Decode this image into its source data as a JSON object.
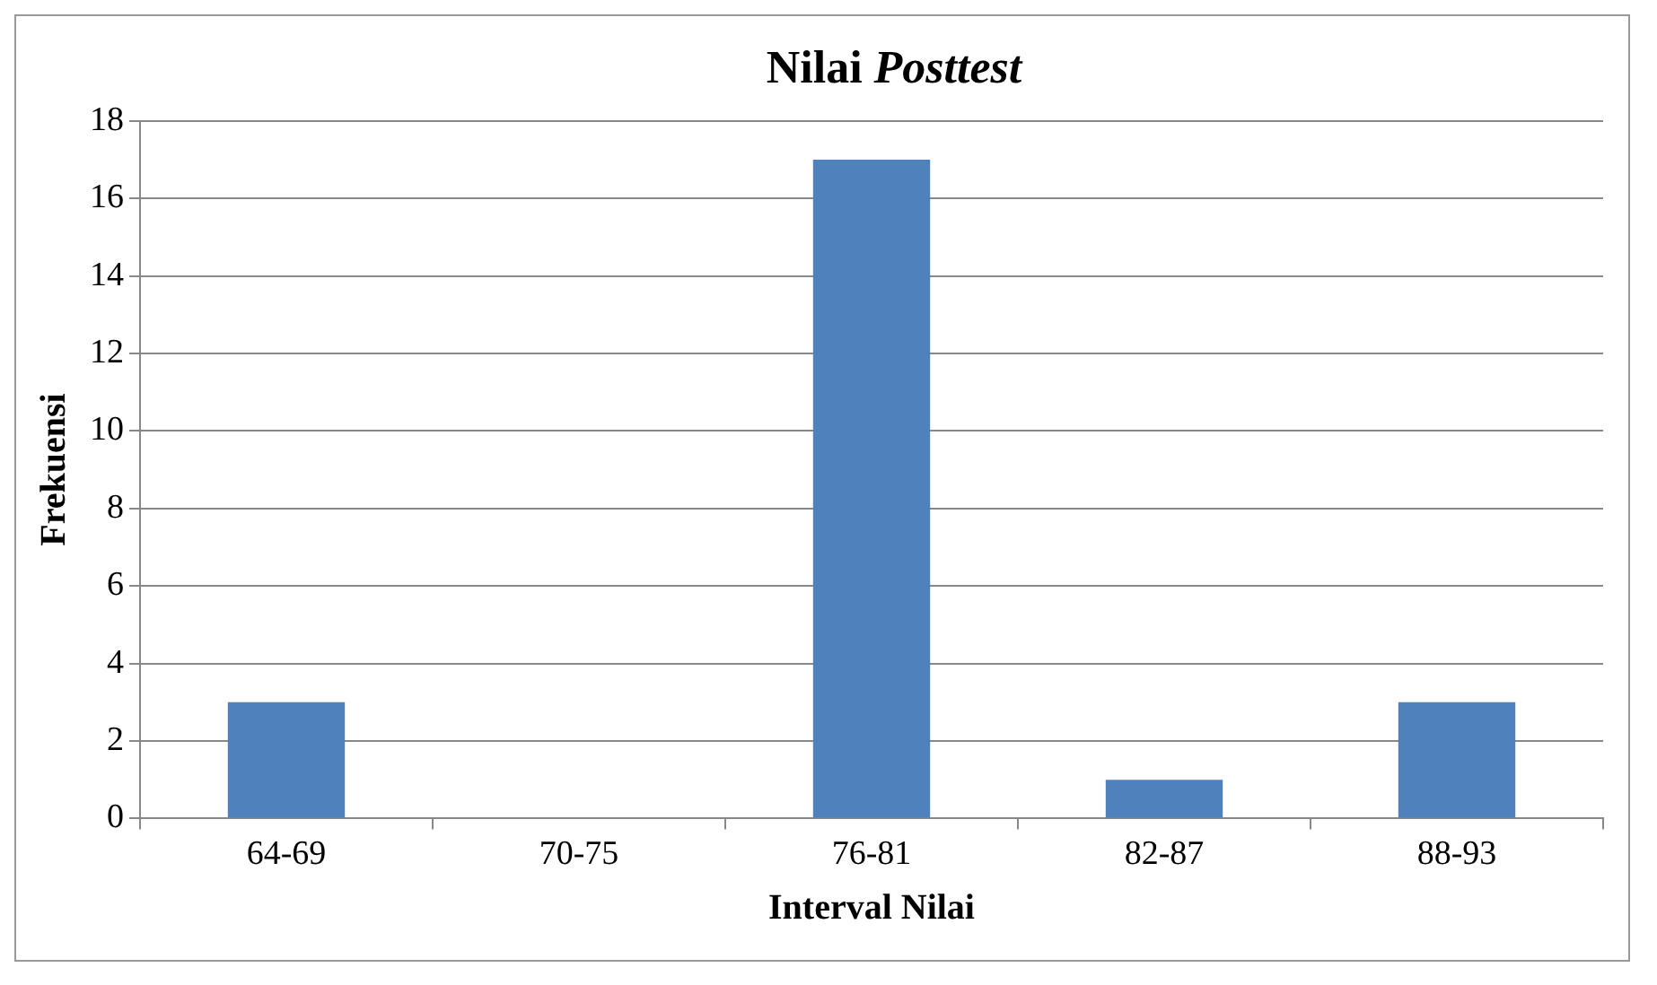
{
  "chart_data": {
    "type": "bar",
    "title": "Nilai Posttest",
    "xlabel": "Interval Nilai",
    "ylabel": "Frekuensi",
    "categories": [
      "64-69",
      "70-75",
      "76-81",
      "82-87",
      "88-93"
    ],
    "values": [
      3,
      0,
      17,
      1,
      3
    ],
    "color": "#4f81bd",
    "ylim": [
      0,
      18
    ],
    "yticks": [
      0,
      2,
      4,
      6,
      8,
      10,
      12,
      14,
      16,
      18
    ],
    "grid": "y",
    "legend": false
  }
}
